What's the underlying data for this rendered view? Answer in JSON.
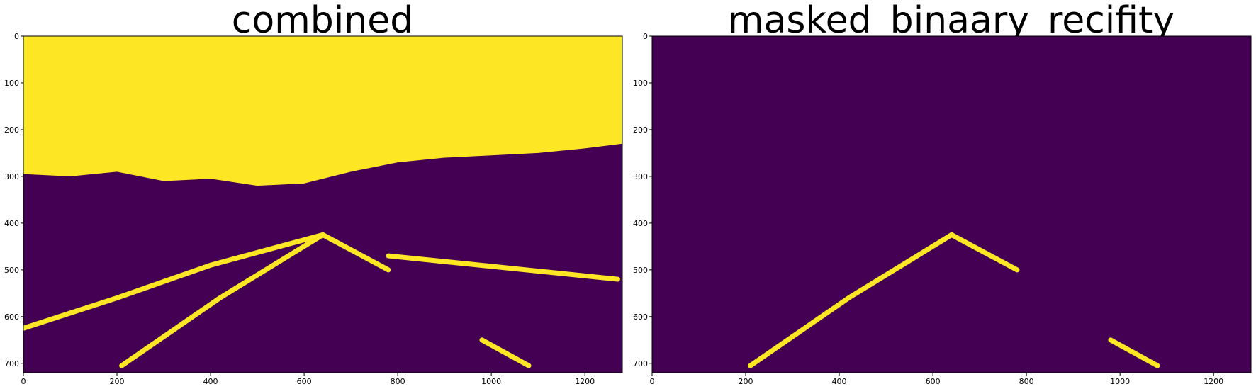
{
  "chart_data": [
    {
      "type": "heatmap",
      "title": "combined",
      "xlabel": "",
      "ylabel": "",
      "xlim": [
        0,
        1280
      ],
      "ylim": [
        720,
        0
      ],
      "x_ticks": [
        0,
        200,
        400,
        600,
        800,
        1000,
        1200
      ],
      "y_ticks": [
        0,
        100,
        200,
        300,
        400,
        500,
        600,
        700
      ],
      "colormap": {
        "0": "#440154",
        "1": "#fde725"
      },
      "image_size": [
        1280,
        720
      ],
      "sky_boundary": [
        [
          0,
          295
        ],
        [
          100,
          300
        ],
        [
          200,
          290
        ],
        [
          300,
          310
        ],
        [
          400,
          305
        ],
        [
          500,
          320
        ],
        [
          600,
          315
        ],
        [
          700,
          290
        ],
        [
          800,
          270
        ],
        [
          900,
          260
        ],
        [
          1000,
          255
        ],
        [
          1100,
          250
        ],
        [
          1200,
          240
        ],
        [
          1280,
          230
        ]
      ],
      "lane_lines": [
        {
          "name": "",
          "points": [
            [
              0,
              625
            ],
            [
              200,
              560
            ],
            [
              400,
              490
            ],
            [
              640,
              425
            ]
          ]
        },
        {
          "name": "",
          "points": [
            [
              210,
              705
            ],
            [
              420,
              560
            ],
            [
              640,
              425
            ]
          ]
        },
        {
          "name": "",
          "points": [
            [
              640,
              425
            ],
            [
              780,
              500
            ]
          ]
        },
        {
          "name": "",
          "points": [
            [
              980,
              650
            ],
            [
              1080,
              705
            ]
          ]
        },
        {
          "name": "",
          "points": [
            [
              780,
              470
            ],
            [
              1270,
              520
            ]
          ]
        }
      ]
    },
    {
      "type": "heatmap",
      "title": "masked_binaary_recifity",
      "xlabel": "",
      "ylabel": "",
      "xlim": [
        0,
        1280
      ],
      "ylim": [
        720,
        0
      ],
      "x_ticks": [
        0,
        200,
        400,
        600,
        800,
        1000,
        1200
      ],
      "y_ticks": [
        0,
        100,
        200,
        300,
        400,
        500,
        600,
        700
      ],
      "colormap": {
        "0": "#440154",
        "1": "#fde725"
      },
      "image_size": [
        1280,
        720
      ],
      "lane_lines": [
        {
          "name": "",
          "points": [
            [
              210,
              705
            ],
            [
              420,
              560
            ],
            [
              640,
              425
            ]
          ]
        },
        {
          "name": "",
          "points": [
            [
              640,
              425
            ],
            [
              780,
              500
            ]
          ]
        },
        {
          "name": "",
          "points": [
            [
              980,
              650
            ],
            [
              1080,
              705
            ]
          ]
        }
      ]
    }
  ]
}
